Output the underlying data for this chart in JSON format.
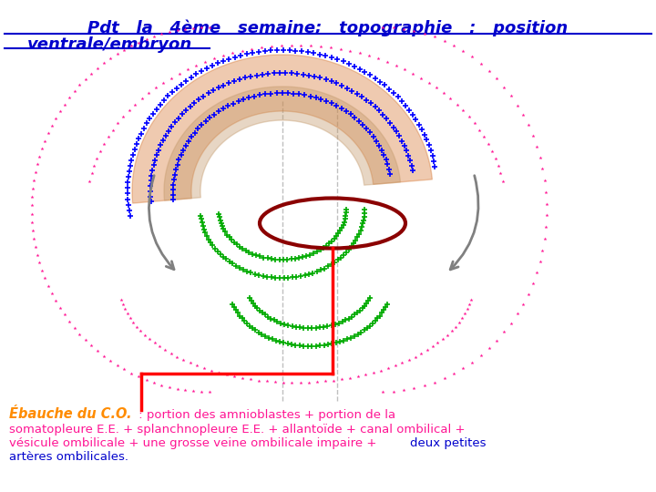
{
  "title_line1": "Pdt   la   4ème   semaine;   topographie   :   position",
  "title_line2": "ventrale/embryon",
  "title_color": "#0000CC",
  "bg_color": "#ffffff",
  "bottom_line1_part1": "Ébauche du C.O.",
  "bottom_line1_part1_color": "#FF8C00",
  "bottom_line1_part2": " : portion des amnioblastes + portion de la",
  "bottom_line2": "somatopleure E.E. + splanchnopleure E.E. + allantoïde + canal ombilical +",
  "bottom_line3_part1": "vésicule ombilicale + une grosse veine ombilicale impaire + ",
  "bottom_line3_part2": "deux petites",
  "bottom_line4": "artères ombilicales.",
  "bottom_pink_color": "#FF1493",
  "bottom_blue_color": "#0000CC"
}
